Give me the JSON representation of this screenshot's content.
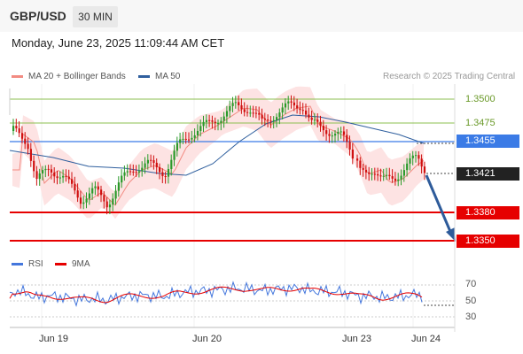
{
  "header": {
    "symbol": "GBP/USD",
    "timeframe": "30 MIN"
  },
  "datetime": "Monday, June 23, 2025 11:09:44 AM CET",
  "legend": {
    "ma20_label": "MA 20 + Bollinger Bands",
    "ma50_label": "MA 50",
    "rsi_label": "RSI",
    "ma9_label": "9MA"
  },
  "credit": "Research © 2025 Trading Central",
  "colors": {
    "ma20": "#f28b82",
    "ma50": "#2f5f9e",
    "resistance_green": "#8bbf4f",
    "pivot_blue": "#3b7be6",
    "support_red": "#e60000",
    "current_price": "#222222",
    "arrow": "#2e5b9a",
    "candle_green": "#2a9a2a",
    "candle_red": "#d01010",
    "rsi": "#4477dd"
  },
  "levels": {
    "r2": "1.3500",
    "r1": "1.3475",
    "pivot": "1.3455",
    "current": "1.3421",
    "s1": "1.3380",
    "s2": "1.3350"
  },
  "rsi_ticks": [
    "70",
    "50",
    "30"
  ],
  "x_labels": [
    "Jun 19",
    "Jun 20",
    "Jun 23",
    "Jun 24"
  ]
}
